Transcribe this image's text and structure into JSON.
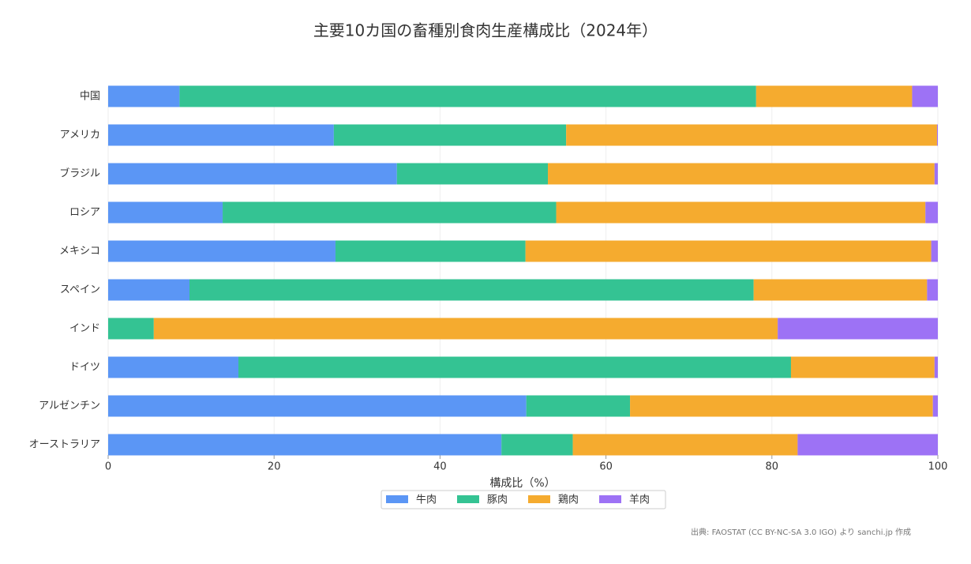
{
  "chart_data": {
    "type": "stacked_barh",
    "title": "主要10カ国の畜種別食肉生産構成比（2024年）",
    "x_label": "構成比（%）",
    "source": "出典: FAOSTAT (CC BY-NC-SA 3.0 IGO) より sanchi.jp 作成",
    "categories": [
      "中国",
      "アメリカ",
      "ブラジル",
      "ロシア",
      "メキシコ",
      "スペイン",
      "インド",
      "ドイツ",
      "アルゼンチン",
      "オーストラリア"
    ],
    "series": [
      {
        "name": "牛肉",
        "color": "#5b96f5",
        "values": [
          8.6,
          27.2,
          34.8,
          13.8,
          27.4,
          9.8,
          0,
          15.7,
          50.4,
          47.4
        ]
      },
      {
        "name": "豚肉",
        "color": "#34c393",
        "values": [
          69.5,
          28.0,
          18.2,
          40.2,
          22.9,
          68.0,
          5.5,
          66.6,
          12.5,
          8.6
        ]
      },
      {
        "name": "鶏肉",
        "color": "#f5ab2f",
        "values": [
          18.8,
          44.7,
          46.6,
          44.5,
          48.9,
          20.9,
          75.2,
          17.3,
          36.5,
          27.1
        ]
      },
      {
        "name": "羊肉",
        "color": "#9d72f5",
        "values": [
          3.1,
          0.1,
          0.4,
          1.5,
          0.8,
          1.3,
          19.3,
          0.4,
          0.6,
          16.9
        ]
      }
    ],
    "xlim": [
      0,
      100
    ],
    "xticks": [
      0,
      20,
      40,
      60,
      80,
      100
    ],
    "grid": true,
    "legend": "lower center"
  }
}
